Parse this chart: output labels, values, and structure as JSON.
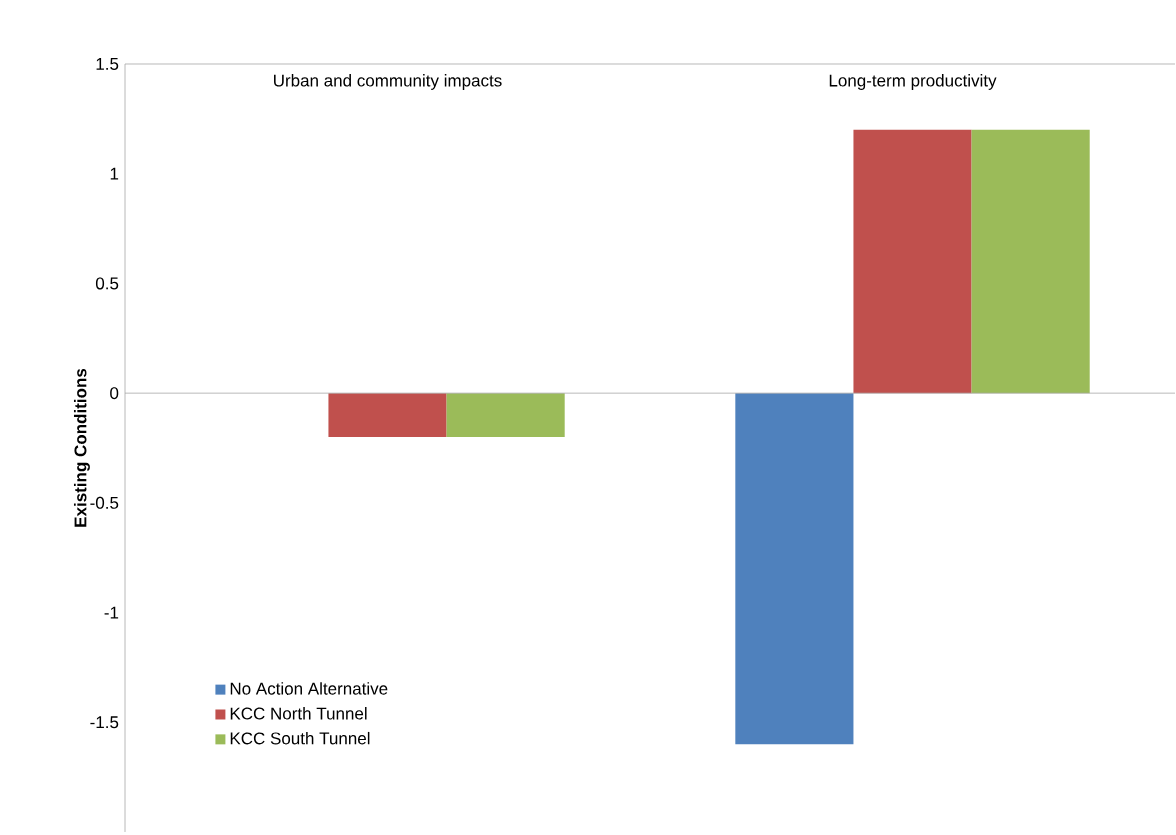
{
  "chart_data": {
    "type": "bar",
    "ylabel": "Existing Conditions",
    "categories": [
      "Urban and community impacts",
      "Long-term productivity"
    ],
    "series": [
      {
        "name": "No Action Alternative",
        "color": "#4f81bd",
        "values": [
          0,
          -1.6
        ]
      },
      {
        "name": "KCC North Tunnel",
        "color": "#c0504d",
        "values": [
          -0.2,
          1.2
        ]
      },
      {
        "name": "KCC South Tunnel",
        "color": "#9bbb59",
        "values": [
          -0.2,
          1.2
        ]
      }
    ],
    "ylim": [
      -2,
      1.5
    ],
    "yticks": [
      -1.5,
      -1,
      -0.5,
      0,
      0.5,
      1,
      1.5
    ],
    "legend": "bottom left"
  }
}
